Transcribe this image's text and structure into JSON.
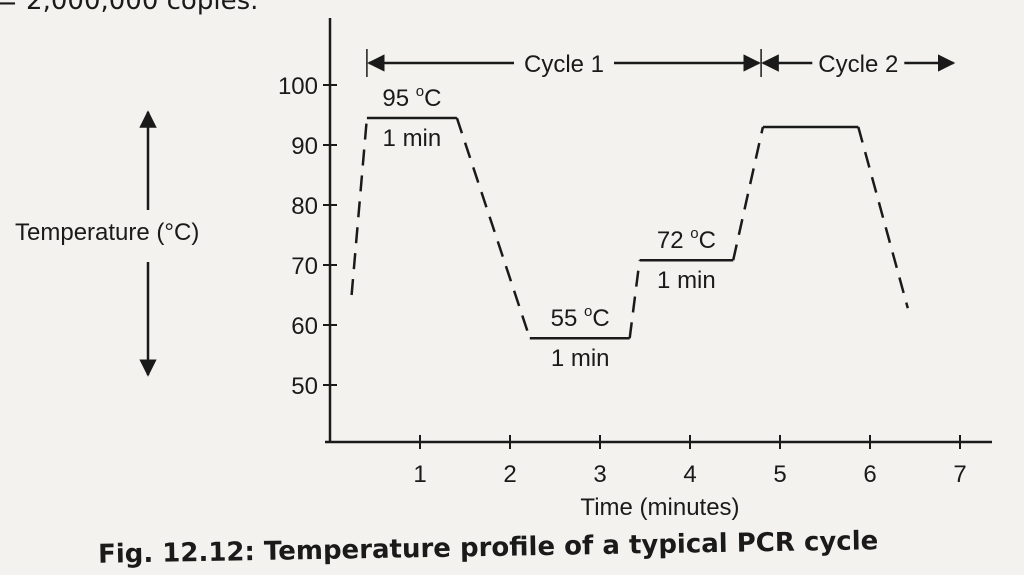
{
  "top_text": "= 2,000,000 copies.",
  "caption": "Fig. 12.12: Temperature profile of a typical PCR cycle",
  "chart_data": {
    "type": "line",
    "title": "",
    "xlabel": "Time (minutes)",
    "ylabel": "Temperature (°C)",
    "ylabel_parts": {
      "pre": "Temperature (",
      "deg": "o",
      "post": "C)"
    },
    "xlim": [
      0,
      7.3
    ],
    "ylim": [
      40,
      105
    ],
    "x_ticks": [
      1,
      2,
      3,
      4,
      5,
      6,
      7
    ],
    "y_ticks": [
      50,
      60,
      70,
      80,
      90,
      100
    ],
    "grid": false,
    "segments": [
      {
        "style": "dashed",
        "points": [
          [
            0.24,
            65
          ],
          [
            0.41,
            94.5
          ]
        ]
      },
      {
        "style": "solid",
        "points": [
          [
            0.41,
            94.5
          ],
          [
            1.41,
            94.5
          ]
        ]
      },
      {
        "style": "dashed",
        "points": [
          [
            1.41,
            94.5
          ],
          [
            2.22,
            57.8
          ]
        ]
      },
      {
        "style": "solid",
        "points": [
          [
            2.22,
            57.8
          ],
          [
            3.33,
            57.8
          ]
        ]
      },
      {
        "style": "dashed",
        "points": [
          [
            3.33,
            57.8
          ],
          [
            3.44,
            70.8
          ]
        ]
      },
      {
        "style": "solid",
        "points": [
          [
            3.44,
            70.8
          ],
          [
            4.48,
            70.8
          ]
        ]
      },
      {
        "style": "dashed",
        "points": [
          [
            4.48,
            70.8
          ],
          [
            4.81,
            93
          ]
        ]
      },
      {
        "style": "solid",
        "points": [
          [
            4.81,
            93
          ],
          [
            5.87,
            93
          ]
        ]
      },
      {
        "style": "dashed",
        "points": [
          [
            5.87,
            93
          ],
          [
            6.42,
            62.8
          ]
        ]
      }
    ],
    "annotations": [
      {
        "temp": "95",
        "unit": "C",
        "duration": "1 min",
        "t": 0.91,
        "T": 94.5
      },
      {
        "temp": "55",
        "unit": "C",
        "duration": "1 min",
        "t": 2.78,
        "T": 57.8
      },
      {
        "temp": "72",
        "unit": "C",
        "duration": "1 min",
        "t": 3.96,
        "T": 70.8
      }
    ],
    "cycles": [
      {
        "label": "Cycle 1",
        "start": 0.41,
        "end": 4.79
      },
      {
        "label": "Cycle 2",
        "start": 4.79,
        "end": 6.95
      }
    ],
    "color": "#1a1a1a"
  }
}
